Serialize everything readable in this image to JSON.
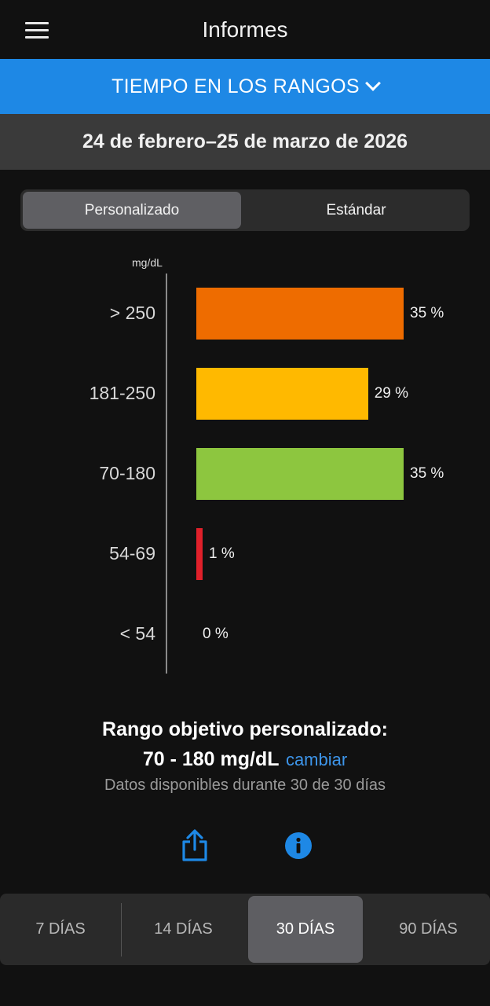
{
  "header": {
    "title": "Informes",
    "menu_icon": "hamburger-menu-icon"
  },
  "report_selector": {
    "label": "TIEMPO EN LOS RANGOS",
    "icon": "chevron-down-icon"
  },
  "date_range": "24 de febrero–25 de marzo de 2026",
  "tabs": [
    {
      "label": "Personalizado",
      "selected": true
    },
    {
      "label": "Estándar",
      "selected": false
    }
  ],
  "chart_data": {
    "type": "bar",
    "orientation": "horizontal",
    "unit": "mg/dL",
    "categories": [
      "> 250",
      "181-250",
      "70-180",
      "54-69",
      "< 54"
    ],
    "values": [
      35,
      29,
      35,
      1,
      0
    ],
    "value_labels": [
      "35 %",
      "29 %",
      "35 %",
      "1 %",
      "0 %"
    ],
    "colors": [
      "#ee6c00",
      "#ffb900",
      "#8dc63f",
      "#e0202a",
      "#000000"
    ]
  },
  "target": {
    "title": "Rango objetivo personalizado:",
    "range": "70 - 180 mg/dL",
    "change_link": "cambiar",
    "availability": "Datos disponibles durante 30 de 30 días"
  },
  "actions": {
    "share_icon": "share-icon",
    "info_icon": "info-icon"
  },
  "colors": {
    "accent": "#1e88e5",
    "link": "#3d95ea",
    "background": "#111111"
  },
  "periods": [
    {
      "label": "7 DÍAS",
      "selected": false
    },
    {
      "label": "14 DÍAS",
      "selected": false
    },
    {
      "label": "30 DÍAS",
      "selected": true
    },
    {
      "label": "90 DÍAS",
      "selected": false
    }
  ]
}
